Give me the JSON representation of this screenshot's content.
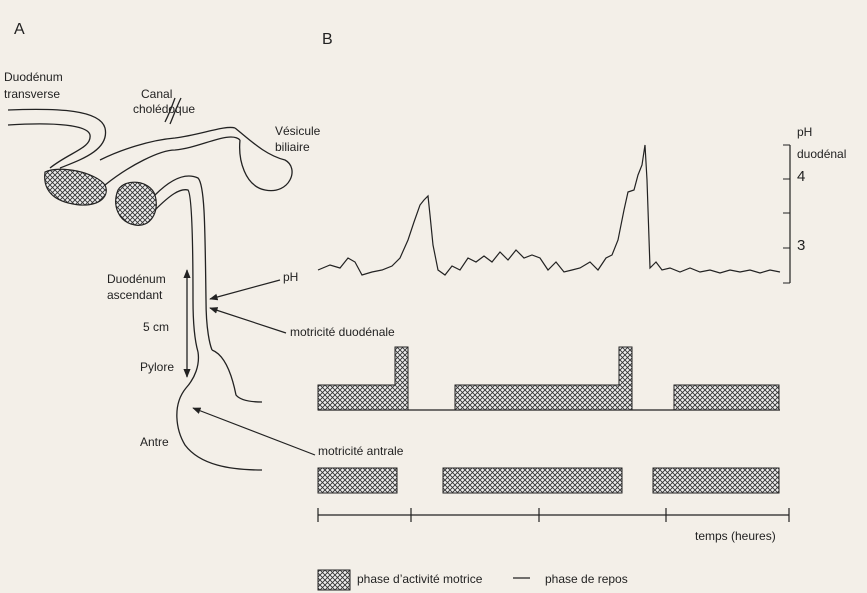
{
  "panel_a": {
    "label": "A",
    "duodenum_transverse": [
      "Duodénum",
      "transverse"
    ],
    "canal_choledoque": [
      "Canal",
      "cholédoque"
    ],
    "vesicule_biliaire": [
      "Vésicule",
      "biliaire"
    ],
    "duodenum_ascendant": [
      "Duodénum",
      "ascendant"
    ],
    "ph": "pH",
    "distance": "5 cm",
    "motricite_duodenale": "motricité duodénale",
    "pylore": "Pylore",
    "antre": "Antre",
    "motricite_antrale": "motricité antrale"
  },
  "panel_b": {
    "label": "B",
    "ph_axis": {
      "title": [
        "pH",
        "duodénal"
      ],
      "ticks": [
        "4",
        "3"
      ]
    },
    "time_axis": "temps (heures)"
  },
  "legend": {
    "active": "phase d’activité motrice",
    "rest": "phase de repos"
  }
}
